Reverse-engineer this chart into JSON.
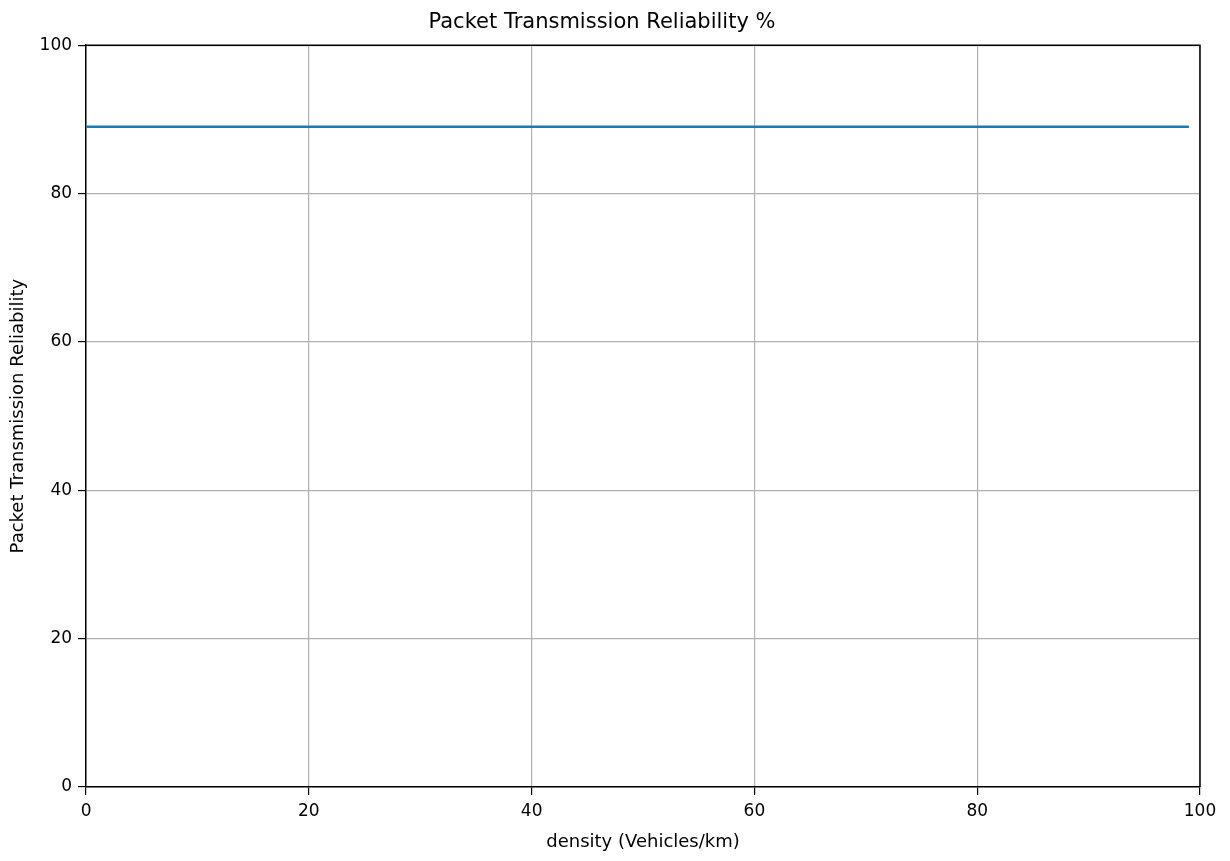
{
  "chart_data": {
    "type": "line",
    "title": "Packet Transmission Reliability %",
    "xlabel": "density (Vehicles/km)",
    "ylabel": "Packet Transmission Reliability",
    "x": [
      0,
      99
    ],
    "series": [
      {
        "color": "#1f77b4",
        "values": [
          89,
          89
        ]
      }
    ],
    "xlim": [
      0,
      100
    ],
    "xticks": [
      0,
      20,
      40,
      60,
      80,
      100
    ],
    "ylim": [
      0,
      100
    ],
    "yticks": [
      0,
      20,
      40,
      60,
      80,
      100
    ],
    "grid": true,
    "legend": false,
    "marker": "none",
    "line_style": "solid"
  }
}
